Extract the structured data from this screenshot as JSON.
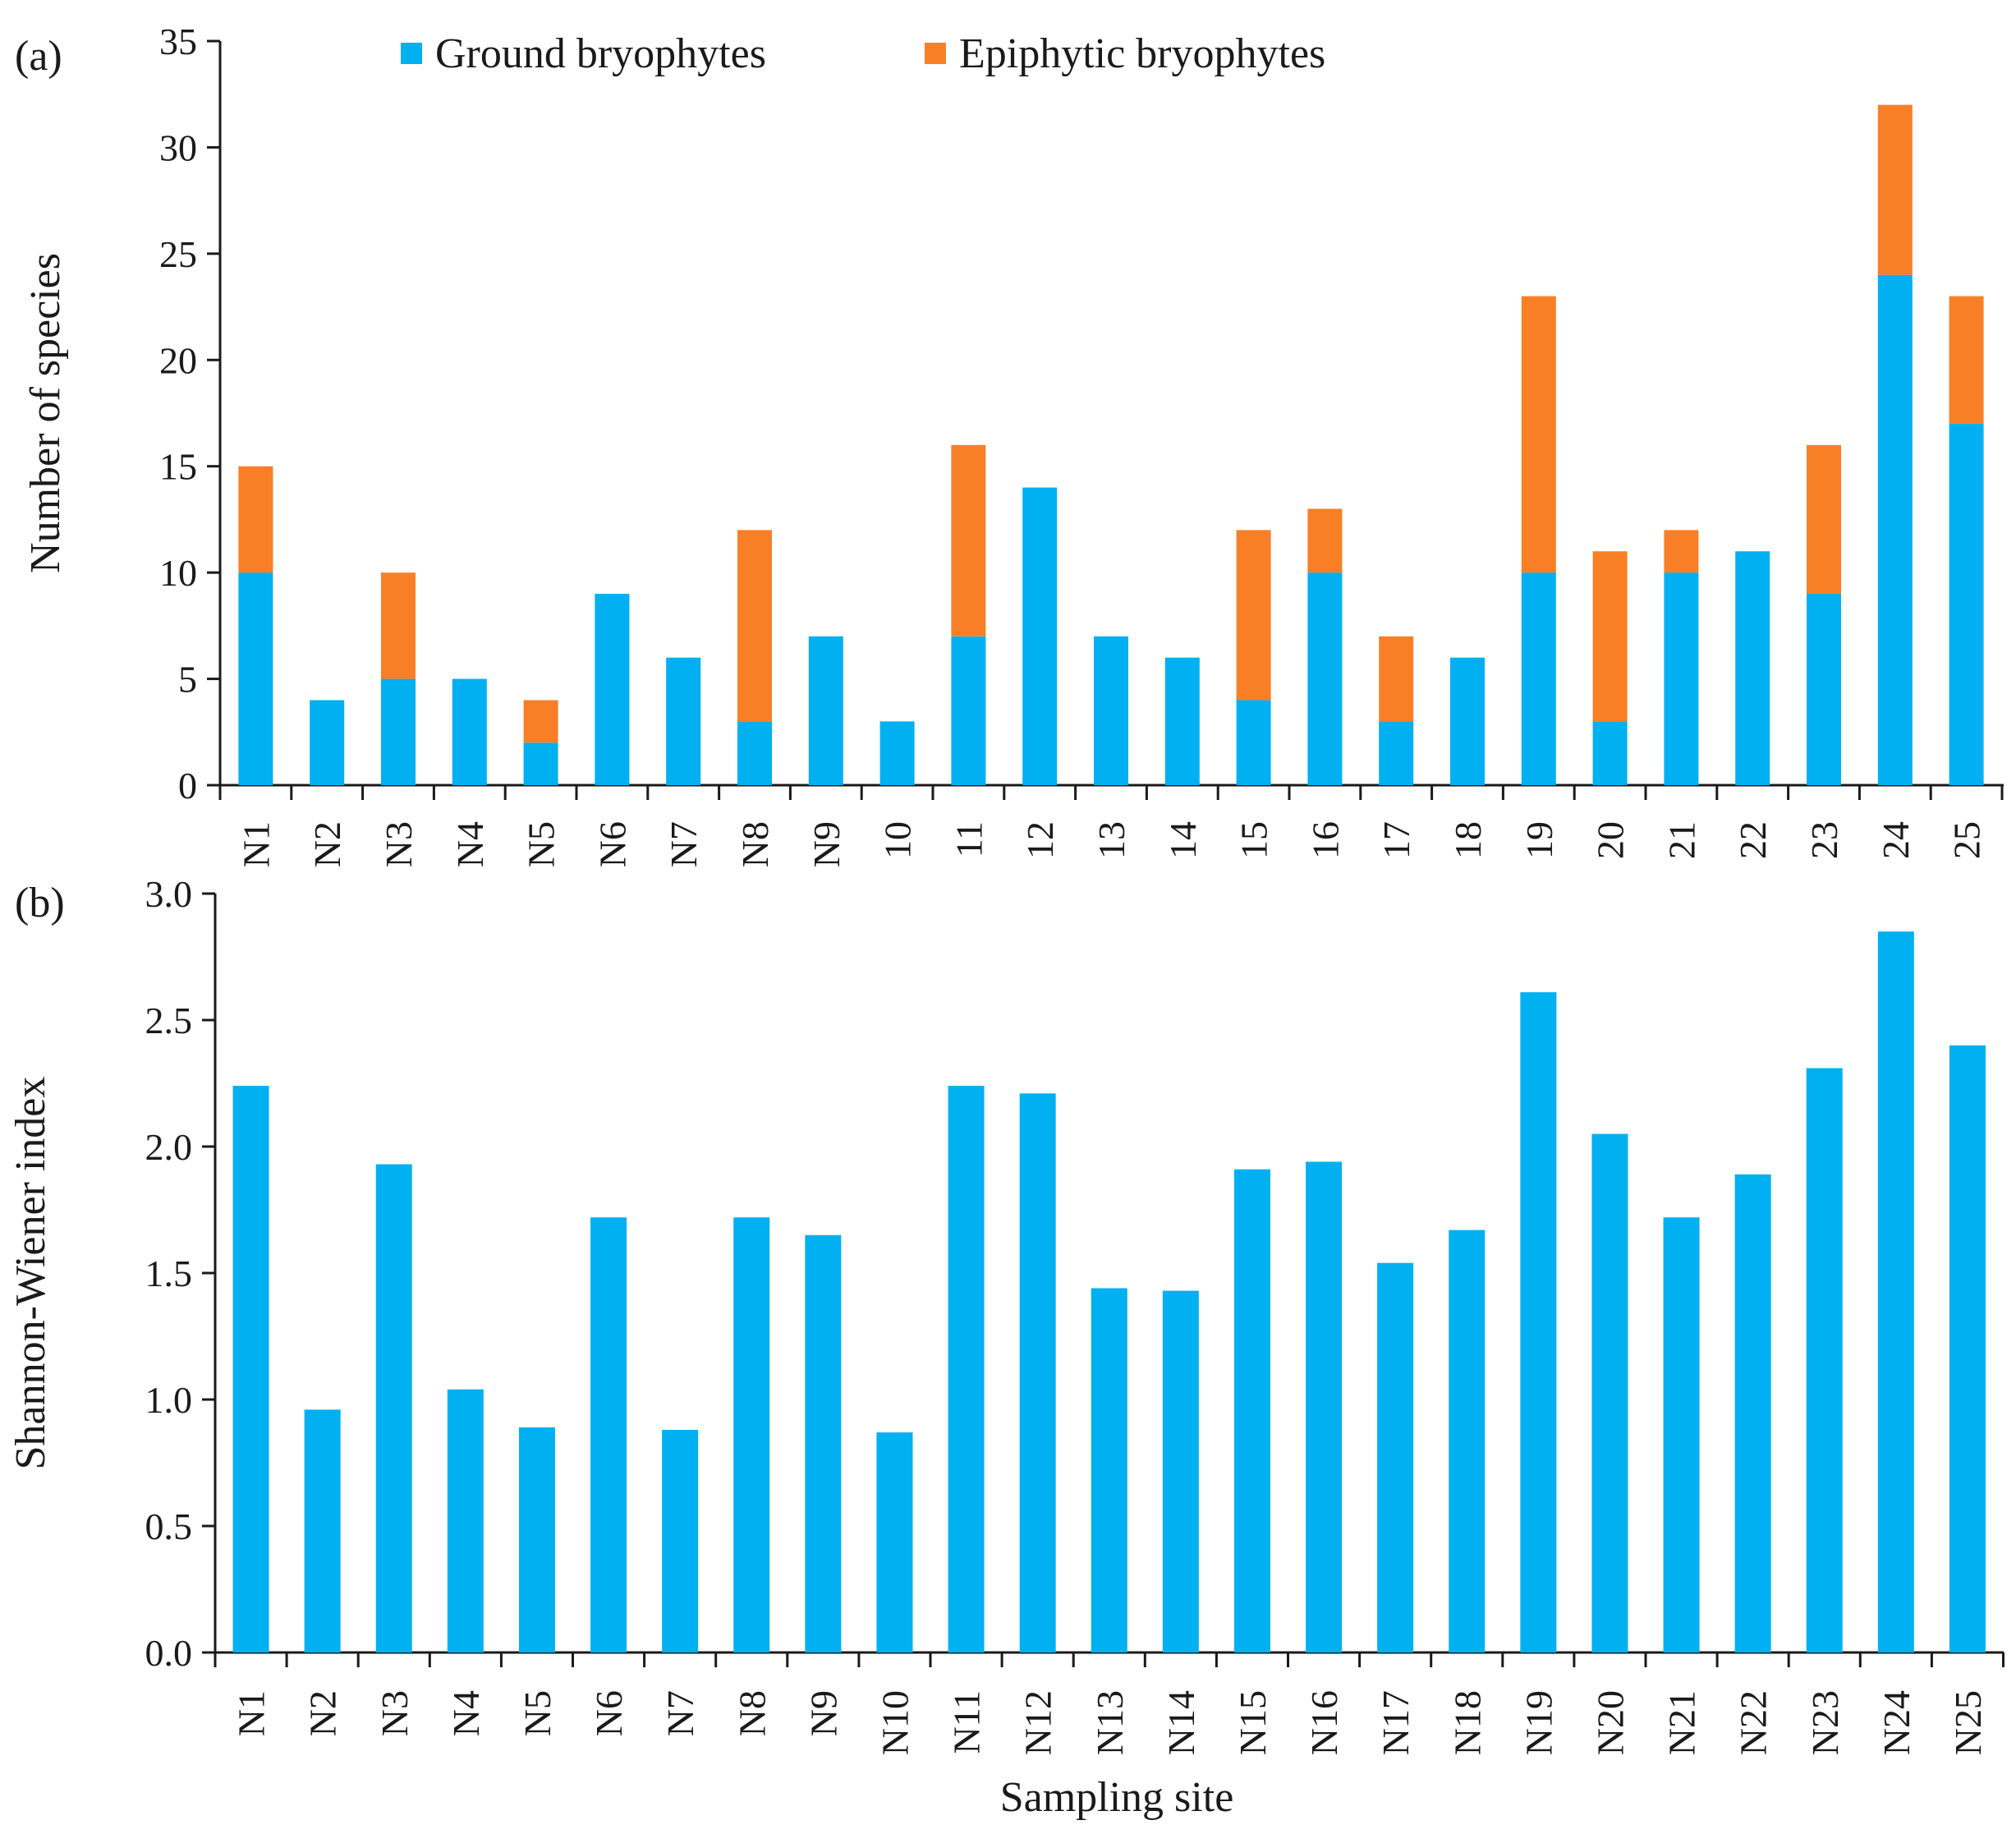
{
  "colors": {
    "ground": "#00b0f0",
    "epiphytic": "#f97f27",
    "axis": "#1a1a1a"
  },
  "chart_data": [
    {
      "type": "bar",
      "stacked": true,
      "panel_label": "(a)",
      "title": "",
      "xlabel": "",
      "ylabel": "Number of species",
      "ylim": [
        0,
        35
      ],
      "yticks": [
        "0",
        "5",
        "10",
        "15",
        "20",
        "25",
        "30",
        "35"
      ],
      "ytick_values": [
        0,
        5,
        10,
        15,
        20,
        25,
        30,
        35
      ],
      "legend_position": "top",
      "categories": [
        "N1",
        "N2",
        "N3",
        "N4",
        "N5",
        "N6",
        "N7",
        "N8",
        "N9",
        "10",
        "11",
        "12",
        "13",
        "14",
        "15",
        "16",
        "17",
        "18",
        "19",
        "20",
        "21",
        "22",
        "23",
        "24",
        "25"
      ],
      "series": [
        {
          "name": "Ground bryophytes",
          "color_key": "ground",
          "values": [
            10,
            4,
            5,
            5,
            2,
            9,
            6,
            3,
            7,
            3,
            7,
            14,
            7,
            6,
            4,
            10,
            3,
            6,
            10,
            3,
            10,
            11,
            9,
            24,
            17
          ]
        },
        {
          "name": "Epiphytic bryophytes",
          "color_key": "epiphytic",
          "values": [
            5,
            0,
            5,
            0,
            2,
            0,
            0,
            9,
            0,
            0,
            9,
            0,
            0,
            0,
            8,
            3,
            4,
            0,
            13,
            8,
            2,
            0,
            7,
            8,
            6
          ]
        }
      ]
    },
    {
      "type": "bar",
      "panel_label": "(b)",
      "title": "",
      "xlabel": "Sampling site",
      "ylabel": "Shannon-Wiener index",
      "ylim": [
        0,
        3.0
      ],
      "yticks": [
        "0.0",
        "0.5",
        "1.0",
        "1.5",
        "2.0",
        "2.5",
        "3.0"
      ],
      "ytick_values": [
        0,
        0.5,
        1.0,
        1.5,
        2.0,
        2.5,
        3.0
      ],
      "categories": [
        "N1",
        "N2",
        "N3",
        "N4",
        "N5",
        "N6",
        "N7",
        "N8",
        "N9",
        "N10",
        "N11",
        "N12",
        "N13",
        "N14",
        "N15",
        "N16",
        "N17",
        "N18",
        "N19",
        "N20",
        "N21",
        "N22",
        "N23",
        "N24",
        "N25"
      ],
      "series": [
        {
          "name": "Shannon-Wiener index",
          "color_key": "ground",
          "values": [
            2.24,
            0.96,
            1.93,
            1.04,
            0.89,
            1.72,
            0.88,
            1.72,
            1.65,
            0.87,
            2.24,
            2.21,
            1.44,
            1.43,
            1.91,
            1.94,
            1.54,
            1.67,
            2.61,
            2.05,
            1.72,
            1.89,
            2.31,
            2.85,
            2.4
          ]
        }
      ]
    }
  ]
}
